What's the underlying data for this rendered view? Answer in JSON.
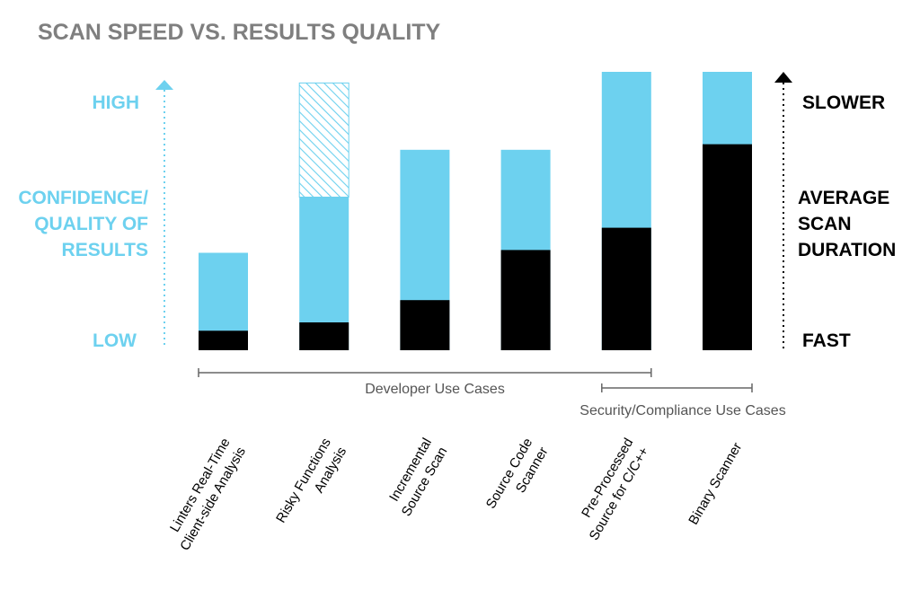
{
  "chart_data": {
    "type": "bar",
    "title": "SCAN SPEED VS. RESULTS QUALITY",
    "categories": [
      [
        "Linters Real-Time",
        "Client-side Analysis"
      ],
      [
        "Risky Functions",
        "Analysis"
      ],
      [
        "Incremental",
        "Source Scan"
      ],
      [
        "Source Code",
        "Scanner"
      ],
      [
        "Pre-Processed",
        "Source for C/C++"
      ],
      [
        "Binary Scanner"
      ]
    ],
    "ylim": [
      0,
      100
    ],
    "series": [
      {
        "key": "scan_duration",
        "values": [
          7,
          10,
          18,
          36,
          44,
          74
        ]
      },
      {
        "key": "quality",
        "values": [
          35,
          55,
          72,
          72,
          100,
          100
        ]
      },
      {
        "key": "quality_potential",
        "values": [
          null,
          96,
          null,
          null,
          null,
          null
        ]
      }
    ],
    "left_axis": {
      "high": "HIGH",
      "low": "LOW",
      "label": [
        "CONFIDENCE/",
        "QUALITY OF",
        "RESULTS"
      ]
    },
    "right_axis": {
      "high": "SLOWER",
      "low": "FAST",
      "label": [
        "AVERAGE",
        "SCAN",
        "DURATION"
      ]
    },
    "ranges": [
      {
        "label": "Developer Use Cases",
        "from": 0,
        "to": 4
      },
      {
        "label": "Security/Compliance Use Cases",
        "from": 4,
        "to": 5
      }
    ],
    "colors": {
      "quality": "#6dd1ef",
      "duration": "#000000",
      "title": "#7f7f7f",
      "range": "#666666"
    }
  }
}
